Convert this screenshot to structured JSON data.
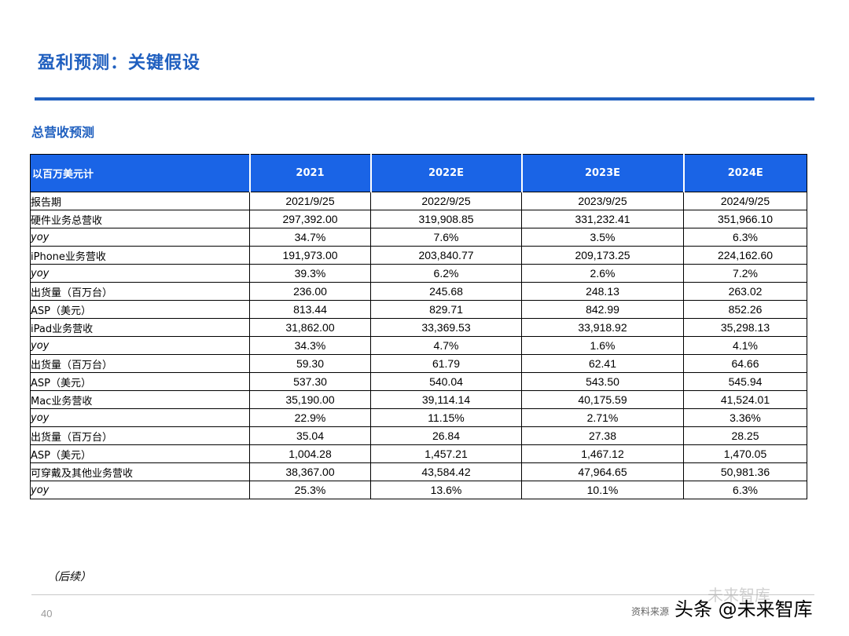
{
  "page": {
    "title": "盈利预测：关键假设",
    "section_title": "总营收预测",
    "continued": "（后续）",
    "page_number": "40",
    "source_note": "资料来源",
    "watermark": "头条 @未来智库",
    "watermark_faint": "未来智库"
  },
  "table": {
    "header": [
      "以百万美元计",
      "2021",
      "2022E",
      "2023E",
      "2024E"
    ],
    "rows": [
      {
        "label": "报告期",
        "indent": 0,
        "italic": false,
        "values": [
          "2021/9/25",
          "2022/9/25",
          "2023/9/25",
          "2024/9/25"
        ]
      },
      {
        "label": "硬件业务总营收",
        "indent": 0,
        "italic": false,
        "values": [
          "297,392.00",
          "319,908.85",
          "331,232.41",
          "351,966.10"
        ]
      },
      {
        "label": "yoy",
        "indent": 0,
        "italic": true,
        "values": [
          "34.7%",
          "7.6%",
          "3.5%",
          "6.3%"
        ]
      },
      {
        "label": "iPhone业务营收",
        "indent": 1,
        "italic": false,
        "values": [
          "191,973.00",
          "203,840.77",
          "209,173.25",
          "224,162.60"
        ]
      },
      {
        "label": "yoy",
        "indent": 1,
        "italic": true,
        "values": [
          "39.3%",
          "6.2%",
          "2.6%",
          "7.2%"
        ]
      },
      {
        "label": "出货量（百万台）",
        "indent": 2,
        "italic": false,
        "values": [
          "236.00",
          "245.68",
          "248.13",
          "263.02"
        ]
      },
      {
        "label": "ASP（美元）",
        "indent": 2,
        "italic": false,
        "values": [
          "813.44",
          "829.71",
          "842.99",
          "852.26"
        ]
      },
      {
        "label": "iPad业务营收",
        "indent": 1,
        "italic": false,
        "values": [
          "31,862.00",
          "33,369.53",
          "33,918.92",
          "35,298.13"
        ]
      },
      {
        "label": "yoy",
        "indent": 1,
        "italic": true,
        "values": [
          "34.3%",
          "4.7%",
          "1.6%",
          "4.1%"
        ]
      },
      {
        "label": "出货量（百万台）",
        "indent": 2,
        "italic": false,
        "values": [
          "59.30",
          "61.79",
          "62.41",
          "64.66"
        ]
      },
      {
        "label": "ASP（美元）",
        "indent": 2,
        "italic": false,
        "values": [
          "537.30",
          "540.04",
          "543.50",
          "545.94"
        ]
      },
      {
        "label": "Mac业务营收",
        "indent": 1,
        "italic": false,
        "values": [
          "35,190.00",
          "39,114.14",
          "40,175.59",
          "41,524.01"
        ]
      },
      {
        "label": "yoy",
        "indent": 1,
        "italic": true,
        "values": [
          "22.9%",
          "11.15%",
          "2.71%",
          "3.36%"
        ]
      },
      {
        "label": "出货量（百万台）",
        "indent": 2,
        "italic": false,
        "values": [
          "35.04",
          "26.84",
          "27.38",
          "28.25"
        ]
      },
      {
        "label": "ASP（美元）",
        "indent": 2,
        "italic": false,
        "values": [
          "1,004.28",
          "1,457.21",
          "1,467.12",
          "1,470.05"
        ]
      },
      {
        "label": "可穿戴及其他业务营收",
        "indent": 1,
        "italic": false,
        "values": [
          "38,367.00",
          "43,584.42",
          "47,964.65",
          "50,981.36"
        ]
      },
      {
        "label": "yoy",
        "indent": 1,
        "italic": true,
        "values": [
          "25.3%",
          "13.6%",
          "10.1%",
          "6.3%"
        ]
      }
    ]
  },
  "colors": {
    "accent": "#1f5fbf",
    "header_fill": "#1a64e6"
  }
}
